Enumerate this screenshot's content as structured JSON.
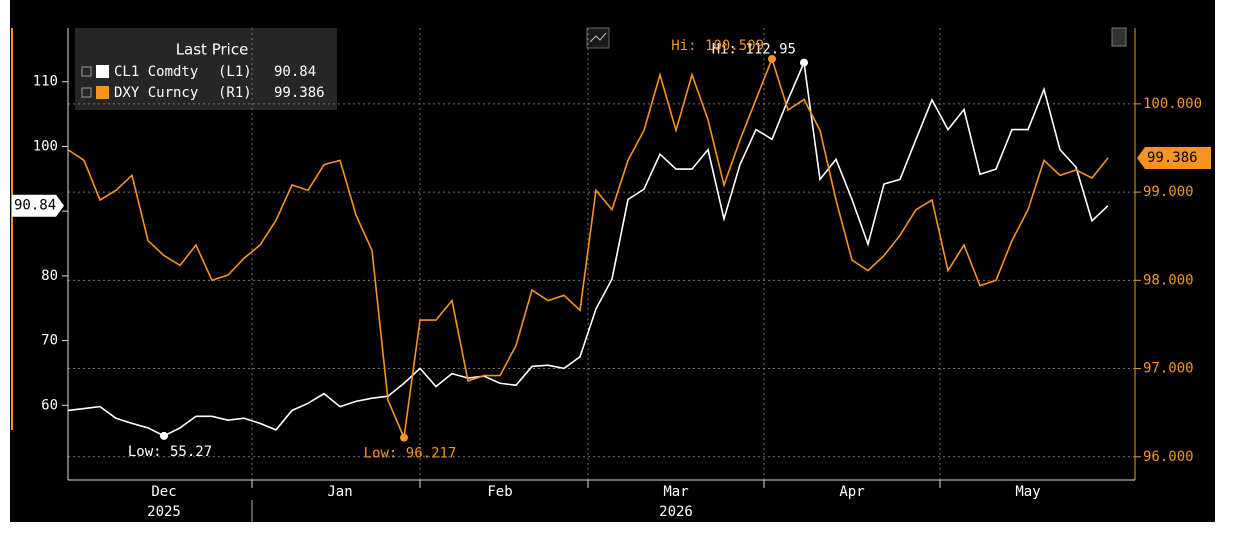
{
  "chart_data": {
    "type": "line",
    "legend_title": "Last Price",
    "categories": [
      null,
      null,
      null,
      null,
      null,
      null,
      "Dec",
      null,
      null,
      null,
      null,
      null,
      null,
      null,
      null,
      null,
      null,
      "Jan",
      null,
      null,
      null,
      null,
      null,
      null,
      null,
      null,
      null,
      "Feb",
      null,
      null,
      null,
      null,
      null,
      null,
      null,
      null,
      null,
      null,
      "Mar",
      null,
      null,
      null,
      null,
      null,
      null,
      null,
      null,
      null,
      null,
      "Apr",
      null,
      null,
      null,
      null,
      null,
      null,
      null,
      null,
      null,
      null,
      "May",
      null,
      null,
      null,
      null,
      null
    ],
    "x_years": [
      "2025",
      "2026"
    ],
    "series": [
      {
        "name": "CL1 Comdty",
        "axis_label": "(L1)",
        "color": "#ffffff",
        "axis": "y",
        "high_label": "Hi: 112.95",
        "low_label": "Low: 55.27",
        "values": [
          59.2,
          59.5,
          59.8,
          58,
          57.2,
          56.5,
          55.27,
          56.5,
          58.3,
          58.3,
          57.7,
          58,
          57.2,
          56.2,
          59.2,
          60.3,
          61.8,
          59.8,
          60.6,
          61.1,
          61.4,
          63.4,
          65.7,
          62.9,
          64.9,
          64.2,
          64.5,
          63.4,
          63.1,
          66,
          66.2,
          65.7,
          67.5,
          74.9,
          79.5,
          91.8,
          93.4,
          98.8,
          96.5,
          96.5,
          99.5,
          88.8,
          97.2,
          102.6,
          101.1,
          107.2,
          112.95,
          94.9,
          98,
          91.8,
          84.9,
          94.2,
          94.9,
          101.1,
          107.2,
          102.6,
          105.7,
          95.7,
          96.5,
          102.6,
          102.6,
          108.8,
          99.5,
          96.8,
          88.5,
          90.84
        ]
      },
      {
        "name": "DXY Curncy",
        "axis_label": "(R1)",
        "color": "#f7931e",
        "axis": "y2",
        "high_label": "Hi: 100.509",
        "low_label": "Low: 96.217",
        "values": [
          99.48,
          99.36,
          98.91,
          99.02,
          99.19,
          98.45,
          98.28,
          98.17,
          98.4,
          98.0,
          98.06,
          98.25,
          98.4,
          98.68,
          99.08,
          99.02,
          99.31,
          99.36,
          98.74,
          98.34,
          96.64,
          96.217,
          97.55,
          97.55,
          97.77,
          96.86,
          96.92,
          96.92,
          97.26,
          97.89,
          97.77,
          97.83,
          97.66,
          99.02,
          98.8,
          99.36,
          99.7,
          100.33,
          99.7,
          100.33,
          99.82,
          99.08,
          99.59,
          100.05,
          100.509,
          99.93,
          100.05,
          99.7,
          98.91,
          98.23,
          98.11,
          98.28,
          98.51,
          98.8,
          98.91,
          98.11,
          98.4,
          97.94,
          98.0,
          98.45,
          98.8,
          99.36,
          99.19,
          99.25,
          99.16,
          99.386
        ]
      }
    ],
    "ylim": [
      50,
      118.3
    ],
    "yticks": [
      60,
      70,
      80,
      90,
      100,
      110
    ],
    "y2lim": [
      95.85,
      100.86
    ],
    "y2ticks": [
      {
        "value": 96,
        "label": "96.000"
      },
      {
        "value": 97,
        "label": "97.000"
      },
      {
        "value": 98,
        "label": "98.000"
      },
      {
        "value": 99,
        "label": "99.000"
      },
      {
        "value": 100,
        "label": "100.000"
      }
    ],
    "grid": true
  }
}
